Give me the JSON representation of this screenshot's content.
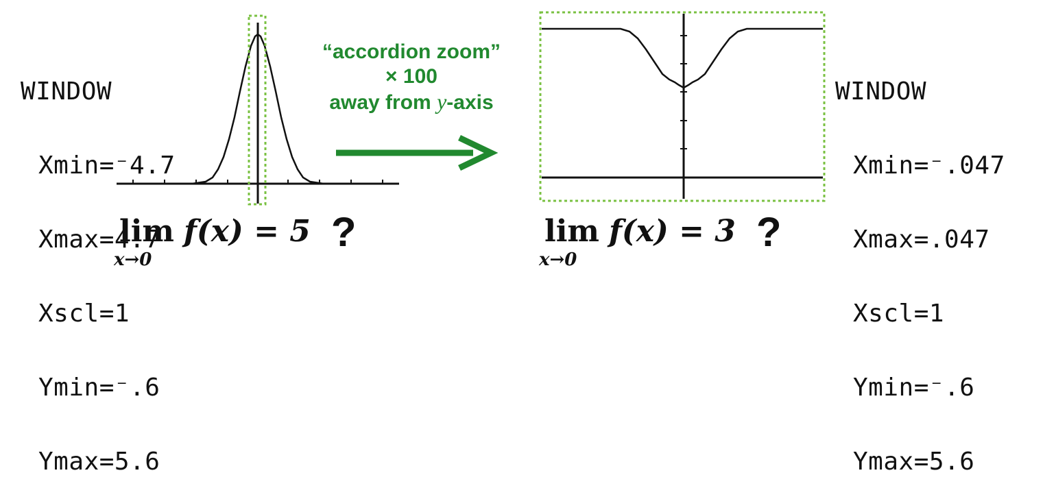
{
  "left_window": {
    "title": "WINDOW",
    "lines": [
      "Xmin=⁻4.7",
      "Xmax=4.7",
      "Xscl=1",
      "Ymin=⁻.6",
      "Ymax=5.6"
    ]
  },
  "right_window": {
    "title": "WINDOW",
    "lines": [
      "Xmin=⁻.047",
      "Xmax=.047",
      "Xscl=1",
      "Ymin=⁻.6",
      "Ymax=5.6"
    ]
  },
  "zoom": {
    "line1": "“accordion zoom”",
    "line2": "× 100",
    "line3_pre": "away from ",
    "line3_var": "y",
    "line3_post": "-axis"
  },
  "limits": {
    "left": {
      "lim": "lim",
      "sub": "x→0",
      "expr": "f(x) = 5",
      "mark": "?"
    },
    "right": {
      "lim": "lim",
      "sub": "x→0",
      "expr": "f(x) = 3",
      "mark": "?"
    }
  },
  "colors": {
    "accent": "#21892f",
    "highlight_box": "#7ac142",
    "ink": "#111111"
  },
  "icons": {
    "arrow": "right-arrow-icon"
  }
}
